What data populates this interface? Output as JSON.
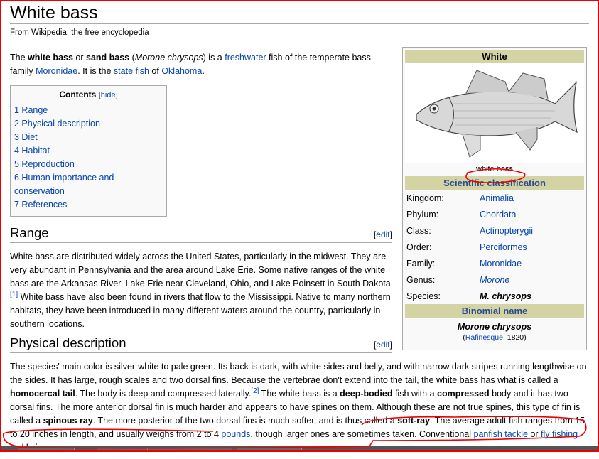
{
  "title": "White bass",
  "subtitle": "From Wikipedia, the free encyclopedia",
  "intro": [
    {
      "t": "The "
    },
    {
      "t": "white bass",
      "b": true
    },
    {
      "t": " or "
    },
    {
      "t": "sand bass",
      "b": true
    },
    {
      "t": " ("
    },
    {
      "t": "Morone chrysops",
      "i": true
    },
    {
      "t": ") is a "
    },
    {
      "t": "freshwater",
      "a": true
    },
    {
      "t": " fish of the temperate bass family "
    },
    {
      "t": "Moronidae",
      "a": true
    },
    {
      "t": ". It is the "
    },
    {
      "t": "state fish",
      "a": true
    },
    {
      "t": " of "
    },
    {
      "t": "Oklahoma",
      "a": true
    },
    {
      "t": "."
    }
  ],
  "toc": {
    "title": "Contents",
    "hide_label": "hide",
    "items": [
      "1 Range",
      "2 Physical description",
      "3 Diet",
      "4 Habitat",
      "5 Reproduction",
      "6 Human importance and conservation",
      "7 References"
    ]
  },
  "infobox": {
    "title": "White",
    "image_caption": "white bass",
    "classification_header": "Scientific classification",
    "rows": [
      {
        "k": "Kingdom:",
        "v": "Animalia",
        "style": "link"
      },
      {
        "k": "Phylum:",
        "v": "Chordata",
        "style": "link"
      },
      {
        "k": "Class:",
        "v": "Actinopterygii",
        "style": "link"
      },
      {
        "k": "Order:",
        "v": "Perciformes",
        "style": "link"
      },
      {
        "k": "Family:",
        "v": "Moronidae",
        "style": "link"
      },
      {
        "k": "Genus:",
        "v": "Morone",
        "style": "link-italic"
      },
      {
        "k": "Species:",
        "v": "M. chrysops",
        "style": "bold-italic"
      }
    ],
    "binomial_header": "Binomial name",
    "binomial": "Morone chrysops",
    "authority": "Rafinesque",
    "year": ", 1820)",
    "paren_open": "("
  },
  "sections": [
    {
      "title": "Range",
      "edit": "edit",
      "body": [
        {
          "t": "White bass are distributed widely across the United States, particularly in the midwest. They are very abundant in Pennsylvania and the area around Lake Erie. Some native ranges of the white bass are the Arkansas River, Lake Erie near Cleveland, Ohio, and Lake Poinsett in South Dakota "
        },
        {
          "t": "[1]",
          "sup": true
        },
        {
          "t": " White bass have also been found in rivers that flow to the Mississippi. Native to many northern habitats, they have been introduced in many different waters around the country, particularly in southern locations."
        }
      ]
    },
    {
      "title": "Physical description",
      "edit": "edit",
      "body": [
        {
          "t": "The species' main color is silver-white to pale green. Its back is dark, with white sides and belly, and with narrow dark stripes running lengthwise on the sides. It has large, rough scales and two dorsal fins. Because the vertebrae don't extend into the tail, the white bass has what is called a "
        },
        {
          "t": "homocercal tail",
          "b": true
        },
        {
          "t": ". The body is deep and compressed laterally."
        },
        {
          "t": "[2]",
          "sup": true
        },
        {
          "t": " The white bass is a "
        },
        {
          "t": "deep-bodied",
          "b": true
        },
        {
          "t": " fish with a "
        },
        {
          "t": "compressed",
          "b": true
        },
        {
          "t": " body and it has two dorsal fins. The more anterior dorsal fin is much harder and appears to have spines on them. Although these are not true spines, this type of fin is called a "
        },
        {
          "t": "spinous ray",
          "b": true
        },
        {
          "t": ". The more posterior of the two dorsal fins is much softer, and is thus called a "
        },
        {
          "t": "soft-ray",
          "b": true
        },
        {
          "t": ". The average adult fish ranges from 15 to 20 inches in length, and usually weighs from 2 to 4 "
        },
        {
          "t": "pounds",
          "a": true
        },
        {
          "t": ", though larger ones are sometimes taken. Conventional "
        },
        {
          "t": "panfish tackle",
          "a": true
        },
        {
          "t": " or "
        },
        {
          "t": "fly fishing",
          "a": true
        },
        {
          "t": " tackle is"
        }
      ]
    }
  ],
  "colors": {
    "link": "#0645ad",
    "infobox_header": "#d3d3a4",
    "annotation": "#e00000"
  }
}
